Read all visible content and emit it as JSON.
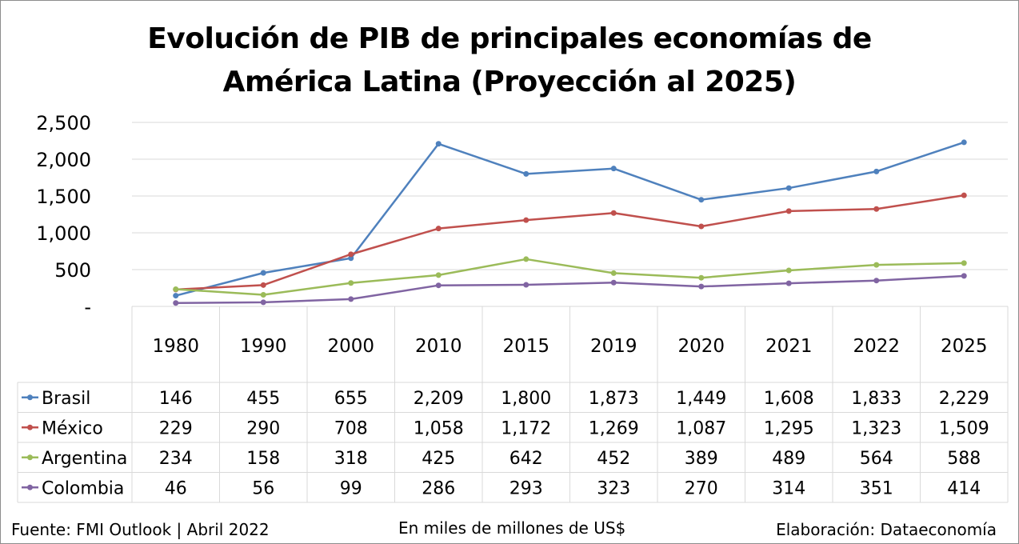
{
  "chart_data": {
    "type": "line",
    "title_lines": [
      "Evolución de PIB de principales economías de",
      "América Latina (Proyección al 2025)"
    ],
    "categories": [
      "1980",
      "1990",
      "2000",
      "2010",
      "2015",
      "2019",
      "2020",
      "2021",
      "2022",
      "2025"
    ],
    "y_ticks": [
      "-",
      "500",
      "1,000",
      "1,500",
      "2,000",
      "2,500"
    ],
    "ylim": [
      0,
      2500
    ],
    "grid": true,
    "legend_placement": "data table",
    "series": [
      {
        "name": "Brasil",
        "color": "#4f81bd",
        "values": [
          146,
          455,
          655,
          2209,
          1800,
          1873,
          1449,
          1608,
          1833,
          2229
        ],
        "labels": [
          "146",
          "455",
          "655",
          "2,209",
          "1,800",
          "1,873",
          "1,449",
          "1,608",
          "1,833",
          "2,229"
        ]
      },
      {
        "name": "México",
        "color": "#c0504d",
        "values": [
          229,
          290,
          708,
          1058,
          1172,
          1269,
          1087,
          1295,
          1323,
          1509
        ],
        "labels": [
          "229",
          "290",
          "708",
          "1,058",
          "1,172",
          "1,269",
          "1,087",
          "1,295",
          "1,323",
          "1,509"
        ]
      },
      {
        "name": "Argentina",
        "color": "#9bbb59",
        "values": [
          234,
          158,
          318,
          425,
          642,
          452,
          389,
          489,
          564,
          588
        ],
        "labels": [
          "234",
          "158",
          "318",
          "425",
          "642",
          "452",
          "389",
          "489",
          "564",
          "588"
        ]
      },
      {
        "name": "Colombia",
        "color": "#8064a2",
        "values": [
          46,
          56,
          99,
          286,
          293,
          323,
          270,
          314,
          351,
          414
        ],
        "labels": [
          "46",
          "56",
          "99",
          "286",
          "293",
          "323",
          "270",
          "314",
          "351",
          "414"
        ]
      }
    ]
  },
  "footer": {
    "source": "Fuente: FMI Outlook  |  Abril 2022",
    "units": "En miles de millones de US$",
    "credit": "Elaboración: Dataeconomía"
  },
  "colors": {
    "grid": "#d9d9d9",
    "table_border": "#d9d9d9",
    "frame": "#8c8c8c"
  }
}
